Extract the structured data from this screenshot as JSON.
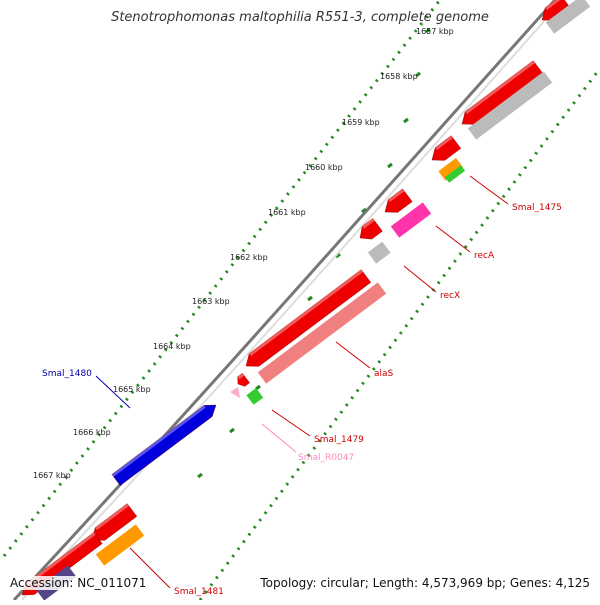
{
  "title": "Stenotrophomonas maltophilia R551-3, complete genome",
  "accession": "Accession: NC_011071",
  "summary": "Topology: circular; Length: 4,573,969 bp; Genes: 4,125",
  "ticks": [
    "1657 kbp",
    "1658 kbp",
    "1659 kbp",
    "1660 kbp",
    "1661 kbp",
    "1662 kbp",
    "1663 kbp",
    "1664 kbp",
    "1665 kbp",
    "1666 kbp",
    "1667 kbp"
  ],
  "colors": {
    "red": "#ee0000",
    "gray": "#bbbbbb",
    "orange": "#ff9900",
    "green": "#33cc33",
    "magenta": "#ff33aa",
    "salmon": "#f08080",
    "blue": "#0000dd",
    "pink": "#ffaacc",
    "label_red": "#cc0000",
    "label_blue": "#0000aa",
    "label_pink": "#ff88bb",
    "tick_green": "#228822",
    "backbone": "#777777"
  },
  "genes": [
    {
      "name": "Smal_1475",
      "color": "label_red"
    },
    {
      "name": "recA",
      "color": "label_red"
    },
    {
      "name": "recX",
      "color": "label_red"
    },
    {
      "name": "alaS",
      "color": "label_red"
    },
    {
      "name": "Smal_1479",
      "color": "label_red"
    },
    {
      "name": "Smal_R0047",
      "color": "label_pink"
    },
    {
      "name": "Smal_1480",
      "color": "label_blue"
    },
    {
      "name": "Smal_1481",
      "color": "label_red"
    }
  ]
}
